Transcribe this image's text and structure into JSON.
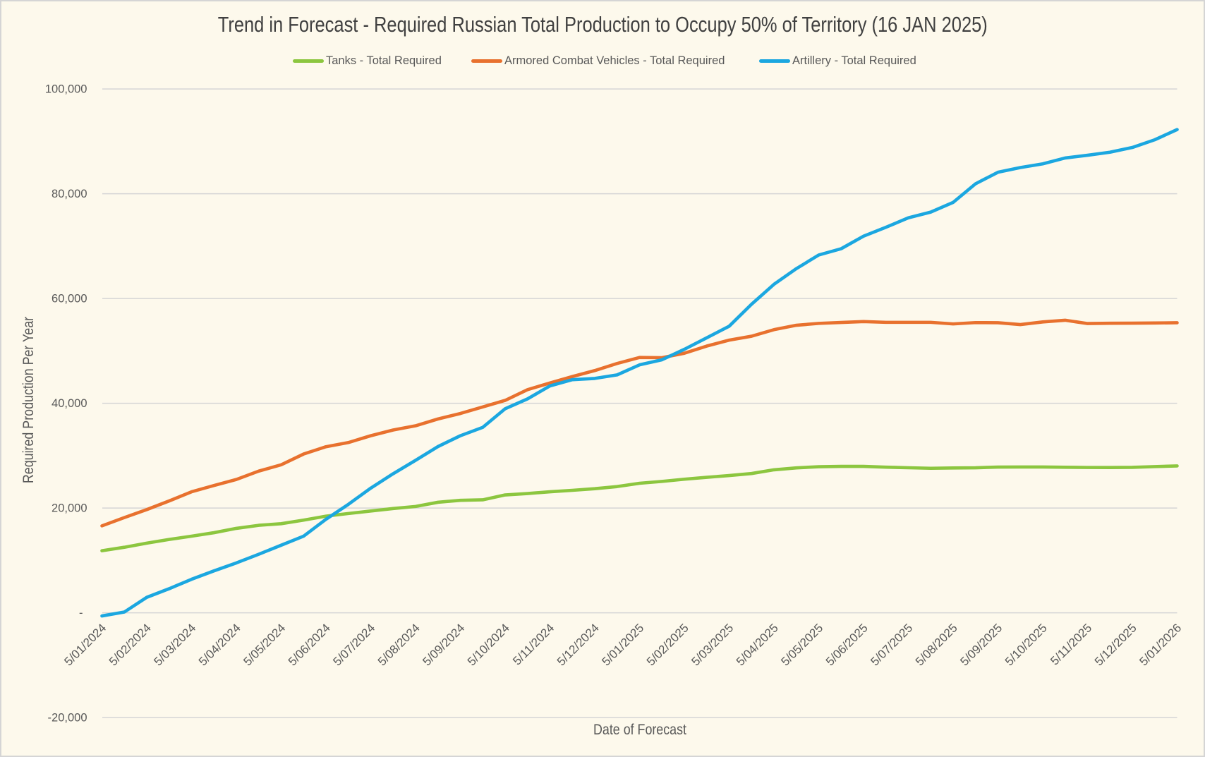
{
  "chart_data": {
    "type": "line",
    "title": "Trend in Forecast - Required Russian Total Production to Occupy 50% of Territory (16 JAN 2025)",
    "xlabel": "Date of Forecast",
    "ylabel": "Required Production Per Year",
    "ylim": [
      -20000,
      100000
    ],
    "ytick_values": [
      100000,
      80000,
      60000,
      40000,
      20000,
      0,
      -20000
    ],
    "ytick_labels": [
      "100,000",
      "80,000",
      "60,000",
      "40,000",
      "20,000",
      "-",
      "-20,000"
    ],
    "categories": [
      "5/01/2024",
      "5/02/2024",
      "5/03/2024",
      "5/04/2024",
      "5/05/2024",
      "5/06/2024",
      "5/07/2024",
      "5/08/2024",
      "5/09/2024",
      "5/10/2024",
      "5/11/2024",
      "5/12/2024",
      "5/01/2025",
      "5/02/2025",
      "5/03/2025",
      "5/04/2025",
      "5/05/2025",
      "5/06/2025",
      "5/07/2025",
      "5/08/2025",
      "5/09/2025",
      "5/10/2025",
      "5/11/2025",
      "5/12/2025",
      "5/01/2026"
    ],
    "points_per_interval": 2,
    "grid": true,
    "legend_position": "top",
    "series": [
      {
        "name": "Tanks - Total Required",
        "color": "#8CC63F",
        "values": [
          11850,
          12510,
          13290,
          14000,
          14630,
          15290,
          16120,
          16700,
          17010,
          17690,
          18450,
          18950,
          19430,
          19900,
          20300,
          21100,
          21470,
          21570,
          22500,
          22770,
          23100,
          23380,
          23690,
          24100,
          24730,
          25080,
          25500,
          25860,
          26200,
          26590,
          27300,
          27660,
          27880,
          27950,
          27950,
          27800,
          27690,
          27590,
          27650,
          27680,
          27820,
          27830,
          27830,
          27780,
          27740,
          27730,
          27770,
          27910,
          28040
        ]
      },
      {
        "name": "Armored Combat Vehicles - Total Required",
        "color": "#E8712E",
        "values": [
          16600,
          18180,
          19700,
          21350,
          23100,
          24300,
          25450,
          27050,
          28250,
          30300,
          31700,
          32500,
          33800,
          34900,
          35700,
          37000,
          38050,
          39300,
          40550,
          42600,
          43870,
          45100,
          46240,
          47600,
          48740,
          48700,
          49550,
          50920,
          52050,
          52800,
          54050,
          54890,
          55250,
          55420,
          55600,
          55450,
          55450,
          55450,
          55150,
          55400,
          55380,
          55020,
          55530,
          55850,
          55220,
          55280,
          55290,
          55330,
          55370
        ]
      },
      {
        "name": "Artillery - Total Required",
        "color": "#1BA7E0",
        "values": [
          -600,
          150,
          2950,
          4600,
          6400,
          8000,
          9520,
          11180,
          12900,
          14620,
          17850,
          20700,
          23800,
          26550,
          29100,
          31730,
          33800,
          35400,
          38950,
          40840,
          43310,
          44500,
          44740,
          45420,
          47330,
          48300,
          50300,
          52500,
          54700,
          58900,
          62700,
          65700,
          68300,
          69500,
          71900,
          73600,
          75400,
          76500,
          78350,
          81900,
          84100,
          85000,
          85700,
          86820,
          87350,
          87930,
          88830,
          90300,
          92250
        ]
      }
    ]
  },
  "style": {
    "background": "#FDF9EC",
    "border": "#D5D5D5",
    "grid": "#D5D5D5",
    "text": "#595959",
    "title_color": "#404040",
    "line_width": 4.6
  }
}
